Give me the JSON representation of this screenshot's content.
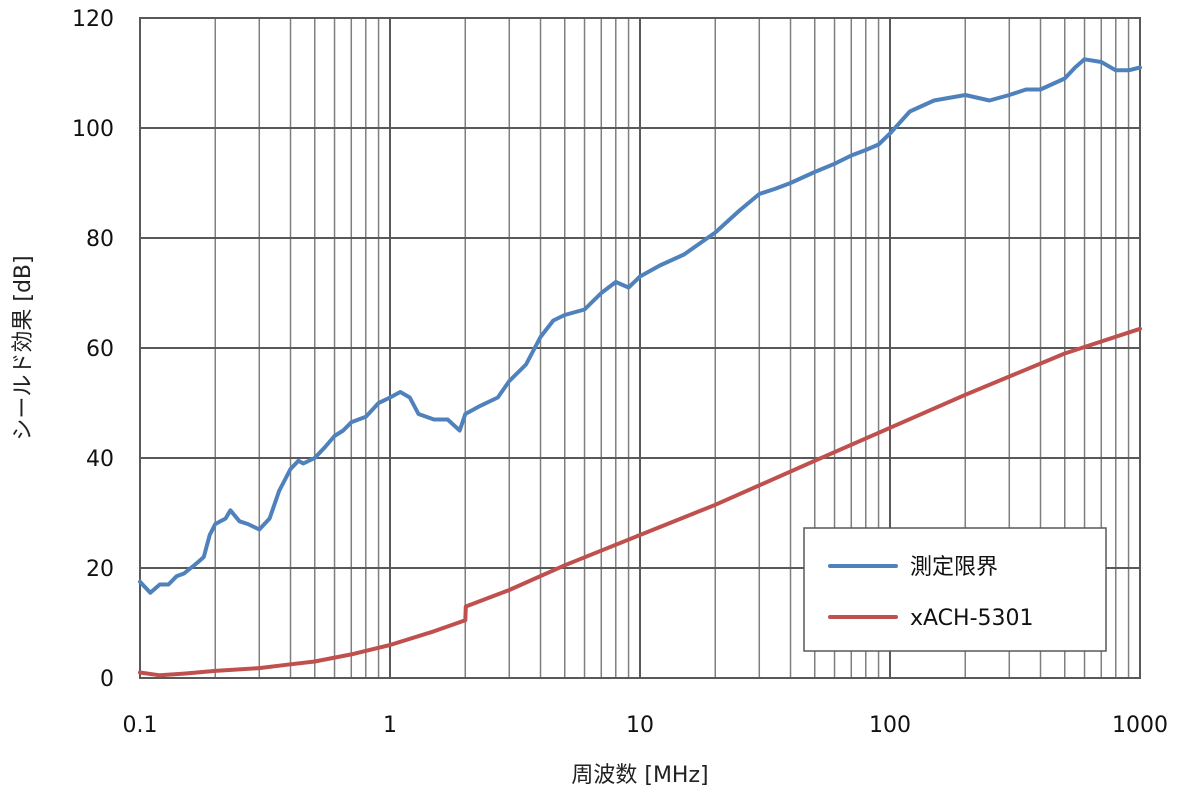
{
  "chart_data": {
    "type": "line",
    "xscale": "log",
    "xlim": [
      0.1,
      1000
    ],
    "ylim": [
      0,
      120
    ],
    "xlabel": "周波数 [MHz]",
    "ylabel": "シールド効果 [dB]",
    "x_ticks": [
      "0.1",
      "1",
      "10",
      "100",
      "1000"
    ],
    "y_ticks": [
      "0",
      "20",
      "40",
      "60",
      "80",
      "100",
      "120"
    ],
    "grid": true,
    "legend_position": "bottom-right",
    "series": [
      {
        "name": "測定限界",
        "color": "#4f81bd",
        "points": [
          [
            0.1,
            17.5
          ],
          [
            0.11,
            15.5
          ],
          [
            0.12,
            17.0
          ],
          [
            0.13,
            17.0
          ],
          [
            0.14,
            18.5
          ],
          [
            0.15,
            19.0
          ],
          [
            0.17,
            21.0
          ],
          [
            0.18,
            22.0
          ],
          [
            0.19,
            26.0
          ],
          [
            0.2,
            28.0
          ],
          [
            0.22,
            29.0
          ],
          [
            0.23,
            30.5
          ],
          [
            0.25,
            28.5
          ],
          [
            0.27,
            28.0
          ],
          [
            0.3,
            27.0
          ],
          [
            0.33,
            29.0
          ],
          [
            0.36,
            34.0
          ],
          [
            0.4,
            38.0
          ],
          [
            0.43,
            39.5
          ],
          [
            0.45,
            39.0
          ],
          [
            0.5,
            40.0
          ],
          [
            0.55,
            42.0
          ],
          [
            0.6,
            44.0
          ],
          [
            0.65,
            45.0
          ],
          [
            0.7,
            46.5
          ],
          [
            0.8,
            47.5
          ],
          [
            0.9,
            50.0
          ],
          [
            1.0,
            51.0
          ],
          [
            1.1,
            52.0
          ],
          [
            1.2,
            51.0
          ],
          [
            1.3,
            48.0
          ],
          [
            1.5,
            47.0
          ],
          [
            1.7,
            47.0
          ],
          [
            1.9,
            45.0
          ],
          [
            2.0,
            48.0
          ],
          [
            2.3,
            49.5
          ],
          [
            2.7,
            51.0
          ],
          [
            3.0,
            54.0
          ],
          [
            3.5,
            57.0
          ],
          [
            4.0,
            62.0
          ],
          [
            4.5,
            65.0
          ],
          [
            5.0,
            66.0
          ],
          [
            6.0,
            67.0
          ],
          [
            7.0,
            70.0
          ],
          [
            8.0,
            72.0
          ],
          [
            9.0,
            71.0
          ],
          [
            10.0,
            73.0
          ],
          [
            12.0,
            75.0
          ],
          [
            15.0,
            77.0
          ],
          [
            20.0,
            81.0
          ],
          [
            25.0,
            85.0
          ],
          [
            30.0,
            88.0
          ],
          [
            35.0,
            89.0
          ],
          [
            40.0,
            90.0
          ],
          [
            50.0,
            92.0
          ],
          [
            60.0,
            93.5
          ],
          [
            70.0,
            95.0
          ],
          [
            80.0,
            96.0
          ],
          [
            90.0,
            97.0
          ],
          [
            100.0,
            99.0
          ],
          [
            120.0,
            103.0
          ],
          [
            150.0,
            105.0
          ],
          [
            200.0,
            106.0
          ],
          [
            250.0,
            105.0
          ],
          [
            300.0,
            106.0
          ],
          [
            350.0,
            107.0
          ],
          [
            400.0,
            107.0
          ],
          [
            500.0,
            109.0
          ],
          [
            550.0,
            111.0
          ],
          [
            600.0,
            112.5
          ],
          [
            700.0,
            112.0
          ],
          [
            800.0,
            110.5
          ],
          [
            900.0,
            110.5
          ],
          [
            1000.0,
            111.0
          ]
        ]
      },
      {
        "name": "xACH-5301",
        "color": "#c0504d",
        "points": [
          [
            0.1,
            1.0
          ],
          [
            0.12,
            0.5
          ],
          [
            0.15,
            0.8
          ],
          [
            0.2,
            1.3
          ],
          [
            0.3,
            1.8
          ],
          [
            0.4,
            2.5
          ],
          [
            0.5,
            3.0
          ],
          [
            0.7,
            4.3
          ],
          [
            1.0,
            6.0
          ],
          [
            1.5,
            8.5
          ],
          [
            2.0,
            10.5
          ],
          [
            2.01,
            13.0
          ],
          [
            3.0,
            16.0
          ],
          [
            5.0,
            20.5
          ],
          [
            10.0,
            26.0
          ],
          [
            20.0,
            31.5
          ],
          [
            50.0,
            39.5
          ],
          [
            100.0,
            45.5
          ],
          [
            200.0,
            51.5
          ],
          [
            500.0,
            59.0
          ],
          [
            1000.0,
            63.5
          ]
        ]
      }
    ]
  }
}
